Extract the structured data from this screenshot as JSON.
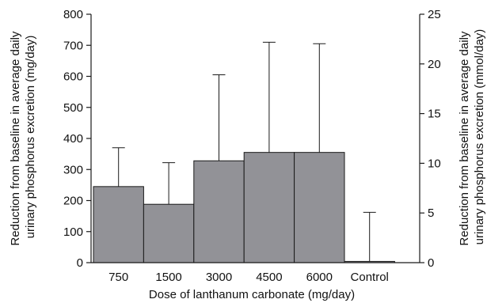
{
  "colors": {
    "bar_fill": "#929297",
    "bar_stroke": "#1a1a1a",
    "axis": "#1a1a1a",
    "text": "#111111"
  },
  "chart_data": {
    "type": "bar",
    "title": "",
    "xlabel": "Dose of lanthanum carbonate (mg/day)",
    "ylabel_lines": [
      "Reduction from baseline in average daily",
      "urinary phosphorus excretion (mg/day)"
    ],
    "y2label_lines": [
      "Reduction from baseline in average daily",
      "urinary phosphorus excretion (mmol/day)"
    ],
    "categories": [
      "750",
      "1500",
      "3000",
      "4500",
      "6000",
      "Control"
    ],
    "values": [
      245,
      188,
      328,
      355,
      355,
      4
    ],
    "error_upper": [
      370,
      322,
      605,
      710,
      705,
      162
    ],
    "ylim": [
      0,
      800
    ],
    "y_ticks": [
      "0",
      "100",
      "200",
      "300",
      "400",
      "500",
      "600",
      "700",
      "800"
    ],
    "y2lim": [
      0,
      25
    ],
    "y2_ticks": [
      "0",
      "5",
      "10",
      "15",
      "20",
      "25"
    ],
    "grid": false,
    "legend": "none"
  }
}
